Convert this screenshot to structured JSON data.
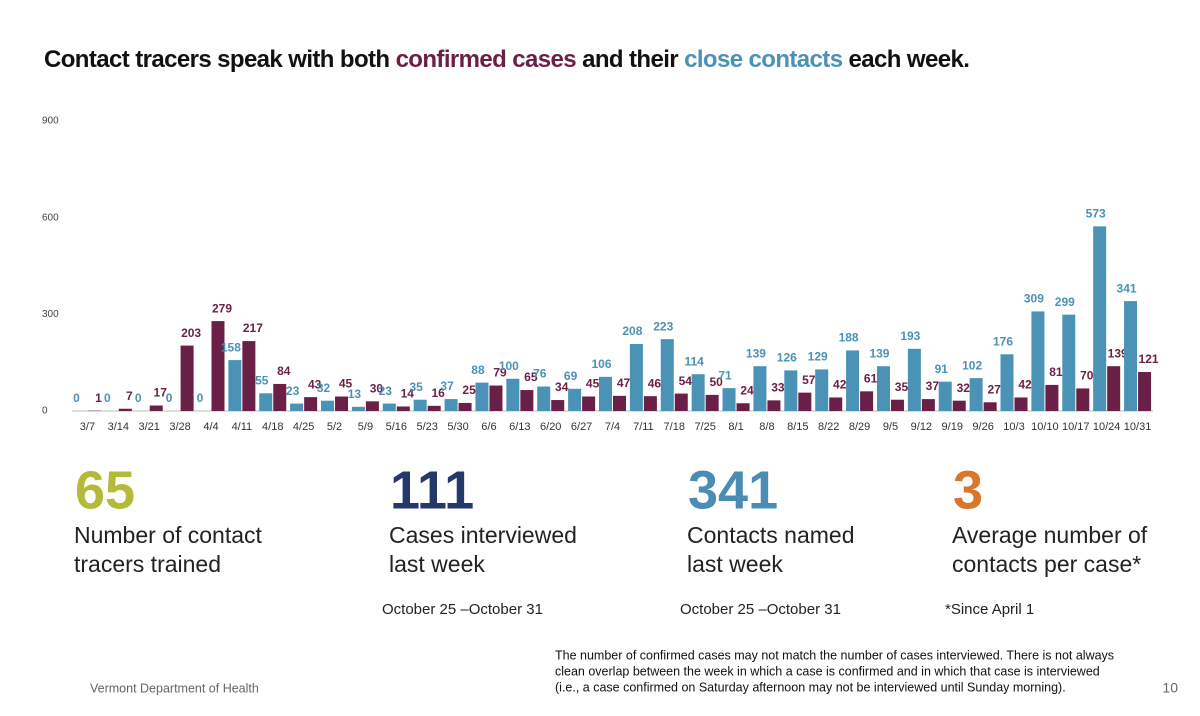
{
  "chart_data": {
    "type": "bar",
    "title": [
      "Contact tracers speak with both",
      "and their",
      "each week."
    ],
    "categories": [
      "3/7",
      "3/14",
      "3/21",
      "3/28",
      "4/4",
      "4/11",
      "4/18",
      "4/25",
      "5/2",
      "5/9",
      "5/16",
      "5/23",
      "5/30",
      "6/6",
      "6/13",
      "6/20",
      "6/27",
      "7/4",
      "7/11",
      "7/18",
      "7/25",
      "8/1",
      "8/8",
      "8/15",
      "8/22",
      "8/29",
      "9/5",
      "9/12",
      "9/19",
      "9/26",
      "10/3",
      "10/10",
      "10/17",
      "10/24",
      "10/31"
    ],
    "series": [
      {
        "name": "close contacts",
        "color": "#4a92b6",
        "values": [
          0,
          0,
          0,
          0,
          0,
          158,
          55,
          23,
          32,
          13,
          23,
          35,
          37,
          88,
          100,
          76,
          69,
          106,
          208,
          223,
          114,
          71,
          139,
          126,
          129,
          188,
          139,
          193,
          91,
          102,
          176,
          309,
          299,
          573,
          341
        ]
      },
      {
        "name": "confirmed cases",
        "color": "#6a1f47",
        "values": [
          1,
          7,
          17,
          203,
          279,
          217,
          84,
          43,
          45,
          30,
          14,
          16,
          25,
          79,
          65,
          34,
          45,
          47,
          46,
          54,
          50,
          24,
          33,
          57,
          42,
          61,
          35,
          37,
          32,
          27,
          42,
          81,
          70,
          139,
          121
        ]
      }
    ],
    "ylim": [
      0,
      900
    ],
    "yticks": [
      0,
      300,
      600,
      900
    ],
    "grid": false
  },
  "stats": [
    {
      "value": "65",
      "color": "#b4bb3b",
      "label": [
        "Number of contact",
        "tracers trained"
      ]
    },
    {
      "value": "111",
      "color": "#24396a",
      "label": [
        "Cases interviewed",
        "last week"
      ],
      "note": "October 25 –October 31"
    },
    {
      "value": "341",
      "color": "#4a8db4",
      "label": [
        "Contacts named",
        "last week"
      ],
      "note": "October 25 –October 31"
    },
    {
      "value": "3",
      "color": "#d8762c",
      "label": [
        "Average number of",
        "contacts per case*"
      ],
      "note": "*Since April 1"
    }
  ],
  "footnote": [
    "The number of confirmed cases may not match the number of cases interviewed. There is not always",
    "clean overlap between the week in which a case is confirmed and in which that case is interviewed",
    "(i.e., a case confirmed on Saturday afternoon may not be interviewed until Sunday morning)."
  ],
  "footer": {
    "source": "Vermont Department of Health",
    "page": "10"
  }
}
